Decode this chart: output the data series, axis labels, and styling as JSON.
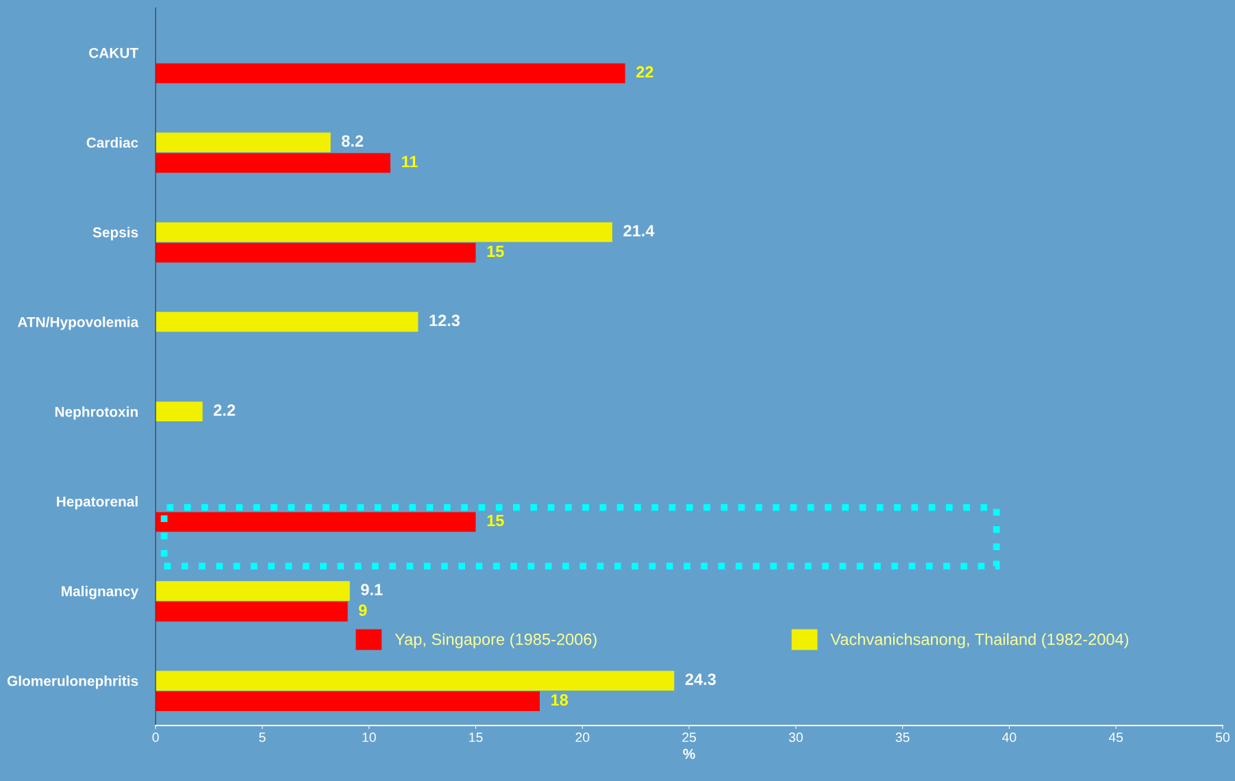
{
  "chart_data": {
    "type": "bar",
    "orientation": "horizontal",
    "categories": [
      "CAKUT",
      "Cardiac",
      "Sepsis",
      "ATN/Hypovolemia",
      "Nephrotoxin",
      "Hepatorenal",
      "Malignancy",
      "Glomerulonephritis"
    ],
    "series": [
      {
        "name": "Yap, Singapore (1985-2006)",
        "color": "#ff0000",
        "values": [
          22,
          11,
          15,
          null,
          null,
          15,
          9,
          18
        ]
      },
      {
        "name": "Vachvanichsanong, Thailand (1982-2004)",
        "color": "#f0f000",
        "values": [
          null,
          8.2,
          21.4,
          12.3,
          2.2,
          null,
          9.1,
          24.3
        ]
      }
    ],
    "xlabel": "%",
    "xlim": [
      0,
      50
    ],
    "xticks": [
      0,
      5,
      10,
      15,
      20,
      25,
      30,
      35,
      40,
      45,
      50
    ],
    "data_labels": true,
    "legend": "bottom",
    "grid": false
  }
}
